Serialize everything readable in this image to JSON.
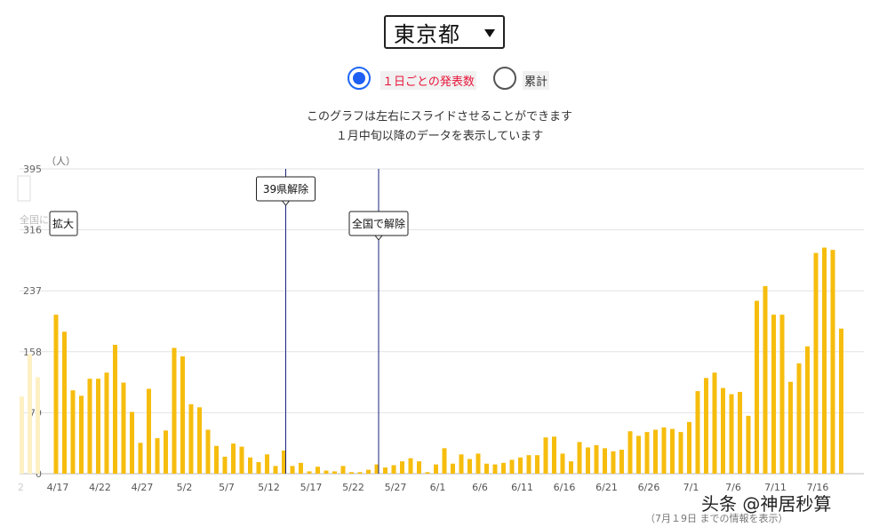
{
  "selector": {
    "value": "東京都"
  },
  "radios": {
    "daily_label": "１日ごとの発表数",
    "cumulative_label": "累計"
  },
  "notes": {
    "line1": "このグラフは左右にスライドさせることができます",
    "line2": "１月中旬以降のデータを表示しています"
  },
  "footnote": "（7月１9日 までの情報を表示）",
  "watermark": "头条 @神居秒算",
  "colors": {
    "bar": "#f6bd0e",
    "faded_bar": "#fdf0c4",
    "event_line": "#1a237e",
    "active_radio": "#1e5ef2",
    "active_label": "#e8153a"
  },
  "chart_data": {
    "type": "bar",
    "ylabel": "（人）",
    "yticks": [
      0,
      79,
      158,
      237,
      316,
      395
    ],
    "ylim": [
      0,
      395
    ],
    "grid": true,
    "left_partial_labels": [
      "全国に",
      "拡大"
    ],
    "partial_left_tick": "2",
    "annotations": [
      {
        "label": "39県解除",
        "category": "5/14"
      },
      {
        "label": "全国で解除",
        "category": "5/25"
      }
    ],
    "categories": [
      "4/17",
      "4/18",
      "4/19",
      "4/20",
      "4/21",
      "4/22",
      "4/23",
      "4/24",
      "4/25",
      "4/26",
      "4/27",
      "4/28",
      "4/29",
      "4/30",
      "5/1",
      "5/2",
      "5/3",
      "5/4",
      "5/5",
      "5/6",
      "5/7",
      "5/8",
      "5/9",
      "5/10",
      "5/11",
      "5/12",
      "5/13",
      "5/14",
      "5/15",
      "5/16",
      "5/17",
      "5/18",
      "5/19",
      "5/20",
      "5/21",
      "5/22",
      "5/23",
      "5/24",
      "5/25",
      "5/26",
      "5/27",
      "5/28",
      "5/29",
      "5/30",
      "5/31",
      "6/1",
      "6/2",
      "6/3",
      "6/4",
      "6/5",
      "6/6",
      "6/7",
      "6/8",
      "6/9",
      "6/10",
      "6/11",
      "6/12",
      "6/13",
      "6/14",
      "6/15",
      "6/16",
      "6/17",
      "6/18",
      "6/19",
      "6/20",
      "6/21",
      "6/22",
      "6/23",
      "6/24",
      "6/25",
      "6/26",
      "6/27",
      "6/28",
      "6/29",
      "6/30",
      "7/1",
      "7/2",
      "7/3",
      "7/4",
      "7/5",
      "7/6",
      "7/7",
      "7/8",
      "7/9",
      "7/10",
      "7/11",
      "7/12",
      "7/13",
      "7/14",
      "7/15",
      "7/16",
      "7/17",
      "7/18",
      "7/19"
    ],
    "xtick_labels": [
      "4/17",
      "4/22",
      "4/27",
      "5/2",
      "5/7",
      "5/12",
      "5/17",
      "5/22",
      "5/27",
      "6/1",
      "6/6",
      "6/11",
      "6/16",
      "6/21",
      "6/26",
      "7/1",
      "7/6",
      "7/11",
      "7/16"
    ],
    "values": [
      206,
      184,
      108,
      101,
      123,
      123,
      131,
      167,
      118,
      80,
      40,
      110,
      46,
      56,
      163,
      152,
      90,
      86,
      57,
      36,
      22,
      39,
      35,
      21,
      15,
      25,
      10,
      30,
      10,
      14,
      3,
      9,
      4,
      3,
      10,
      2,
      2,
      5,
      12,
      8,
      11,
      16,
      20,
      16,
      2,
      12,
      33,
      13,
      25,
      19,
      26,
      13,
      12,
      14,
      18,
      21,
      24,
      24,
      47,
      48,
      26,
      16,
      41,
      34,
      37,
      33,
      29,
      31,
      55,
      49,
      54,
      57,
      60,
      58,
      54,
      67,
      107,
      124,
      131,
      111,
      103,
      106,
      75,
      224,
      243,
      206,
      206,
      119,
      143,
      165,
      286,
      293,
      290,
      188
    ],
    "faded_values": [
      100,
      155,
      125
    ]
  }
}
